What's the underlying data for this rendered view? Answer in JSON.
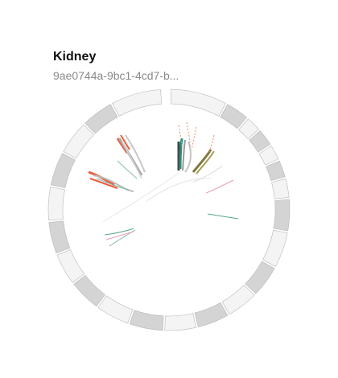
{
  "card": {
    "title": "Kidney",
    "subtitle": "9ae0744a-9bc1-4cd7-b..."
  },
  "colors": {
    "segment_dark": "#d4d4d4",
    "segment_light": "#f4f4f4",
    "segment_stroke": "#b8b8b8",
    "red": "#ef5a3c",
    "teal": "#2e8b7a",
    "olive": "#7f7a3c",
    "gray": "#a8a8a8",
    "pink": "#e08aa0"
  }
}
